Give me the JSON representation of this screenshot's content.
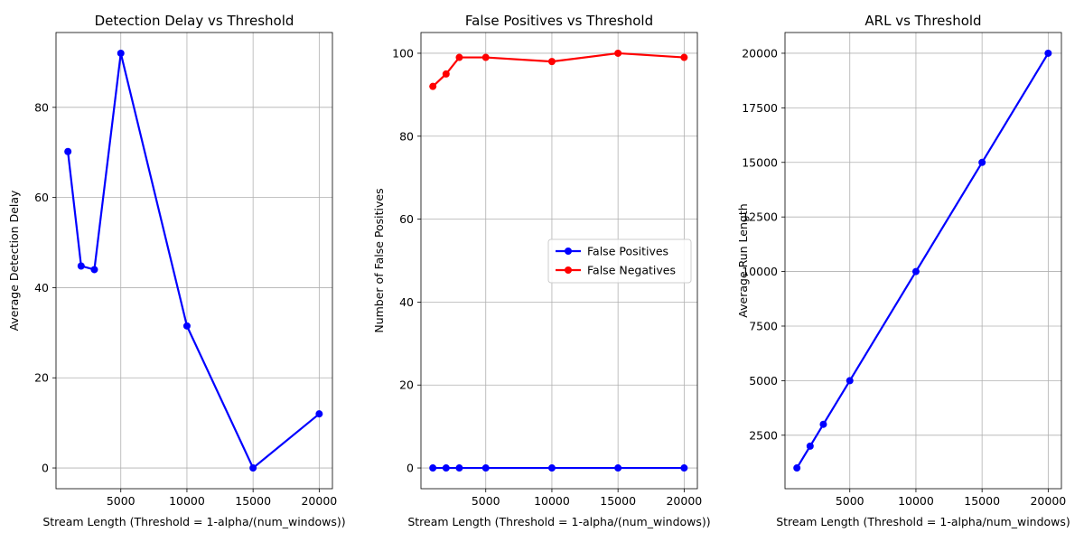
{
  "chart_data": [
    {
      "type": "line",
      "title": "Detection Delay vs Threshold",
      "xlabel": "Stream Length (Threshold = 1-alpha/(num_windows))",
      "ylabel": "Average Detection Delay",
      "xlim": [
        100,
        21000
      ],
      "ylim": [
        -4.6,
        96.6
      ],
      "xticks": [
        5000,
        10000,
        15000,
        20000
      ],
      "yticks": [
        0,
        20,
        40,
        60,
        80
      ],
      "grid": true,
      "x": [
        1000,
        2000,
        3000,
        5000,
        10000,
        15000,
        20000
      ],
      "series": [
        {
          "name": "Detection Delay",
          "color": "#0000ff",
          "values": [
            70.2,
            44.8,
            44.0,
            92.0,
            31.5,
            0,
            12.0
          ]
        }
      ]
    },
    {
      "type": "line",
      "title": "False Positives vs Threshold",
      "xlabel": "Stream Length (Threshold = 1-alpha/(num_windows))",
      "ylabel": "Number of False Positives",
      "xlim": [
        100,
        21000
      ],
      "ylim": [
        -5,
        105
      ],
      "xticks": [
        5000,
        10000,
        15000,
        20000
      ],
      "yticks": [
        0,
        20,
        40,
        60,
        80,
        100
      ],
      "grid": true,
      "legend_position": "center-right",
      "x": [
        1000,
        2000,
        3000,
        5000,
        10000,
        15000,
        20000
      ],
      "series": [
        {
          "name": "False Positives",
          "color": "#0000ff",
          "values": [
            0,
            0,
            0,
            0,
            0,
            0,
            0
          ]
        },
        {
          "name": "False Negatives",
          "color": "#ff0000",
          "values": [
            92,
            95,
            99,
            99,
            98,
            100,
            99
          ]
        }
      ]
    },
    {
      "type": "line",
      "title": "ARL vs Threshold",
      "xlabel": "Stream Length (Threshold = 1-alpha/num_windows)",
      "ylabel": "Average Run Length",
      "xlim": [
        100,
        21000
      ],
      "ylim": [
        50,
        20950
      ],
      "xticks": [
        5000,
        10000,
        15000,
        20000
      ],
      "yticks": [
        2500,
        5000,
        7500,
        10000,
        12500,
        15000,
        17500,
        20000
      ],
      "grid": true,
      "x": [
        1000,
        2000,
        3000,
        5000,
        10000,
        15000,
        20000
      ],
      "series": [
        {
          "name": "ARL",
          "color": "#0000ff",
          "values": [
            1000,
            2000,
            3000,
            5000,
            10000,
            15000,
            20000
          ]
        }
      ]
    }
  ]
}
